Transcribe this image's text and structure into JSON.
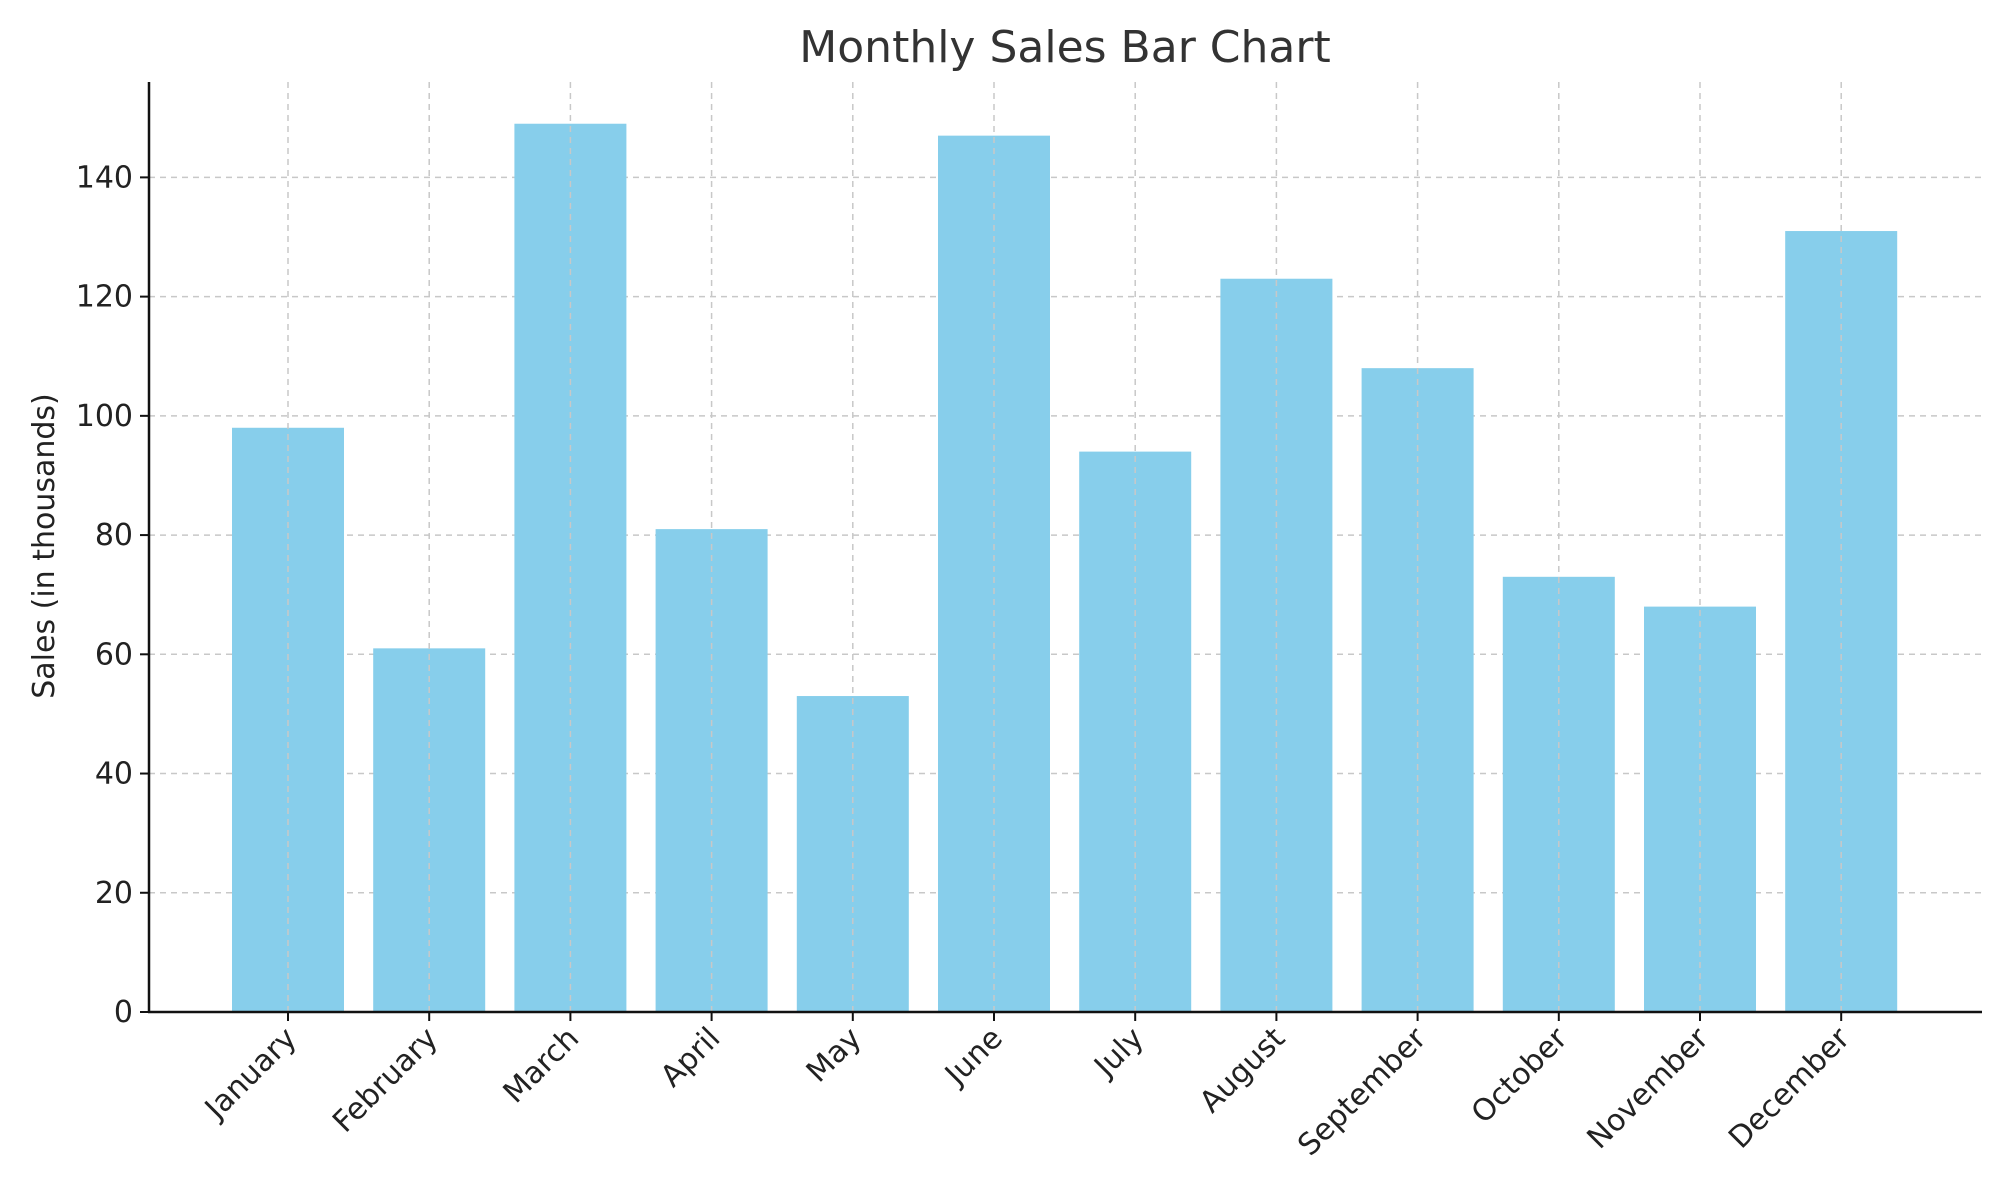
{
  "chart_data": {
    "type": "bar",
    "title": "Monthly Sales Bar Chart",
    "xlabel": "",
    "ylabel": "Sales (in thousands)",
    "categories": [
      "January",
      "February",
      "March",
      "April",
      "May",
      "June",
      "July",
      "August",
      "September",
      "October",
      "November",
      "December"
    ],
    "values": [
      98,
      61,
      149,
      81,
      53,
      147,
      94,
      123,
      108,
      73,
      68,
      131
    ],
    "ylim": [
      0,
      156
    ],
    "yticks": [
      0,
      20,
      40,
      60,
      80,
      100,
      120,
      140
    ],
    "grid": true,
    "grid_style": "dashed",
    "legend": "none",
    "colors": {
      "bar": "#87CEEB",
      "grid": "#c8c8c8",
      "axis": "#111111",
      "title": "#333333",
      "text": "#222222"
    }
  }
}
